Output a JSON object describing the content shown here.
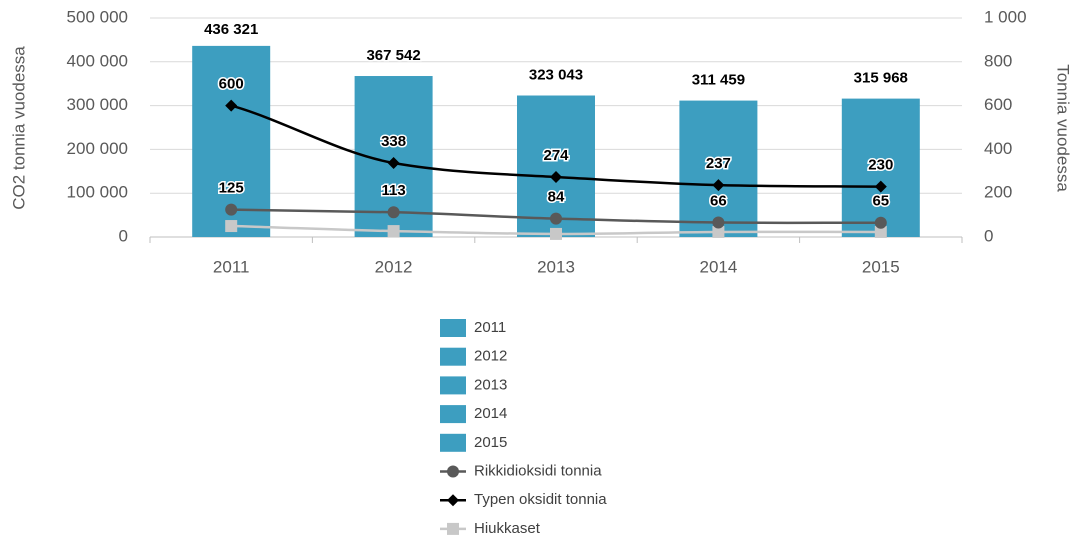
{
  "chart_data": {
    "type": "bar",
    "ylabel": "CO2 tonnia vuodessa",
    "y2label": "Tonnia vuodessa",
    "categories": [
      "2011",
      "2012",
      "2013",
      "2014",
      "2015"
    ],
    "values": [
      436321,
      367542,
      323043,
      311459,
      315968
    ],
    "value_labels": [
      "436 321",
      "367 542",
      "323 043",
      "311 459",
      "315 968"
    ],
    "color": "#3d9ec0",
    "ylim": [
      0,
      500000
    ],
    "yticks": [
      0,
      {
        "value": 100000,
        "label": "100 000"
      },
      {
        "value": 200000,
        "label": "200 000"
      },
      {
        "value": 300000,
        "label": "300 000"
      },
      {
        "value": 400000,
        "label": "400 000"
      },
      {
        "value": 500000,
        "label": "500 000"
      }
    ],
    "y2lim": [
      0,
      1000
    ],
    "y2ticks": [
      0,
      200,
      400,
      600,
      800,
      {
        "value": 1000,
        "label": "1 000"
      }
    ],
    "grid": true,
    "series": [
      {
        "name": "Rikkidioksidi tonnia",
        "color": "#595959",
        "marker": "circle",
        "axis": "y2",
        "values": [
          125,
          113,
          84,
          66,
          65
        ]
      },
      {
        "name": "Typen oksidit tonnia",
        "color": "#000000",
        "marker": "diamond",
        "axis": "y2",
        "values": [
          600,
          338,
          274,
          237,
          230
        ]
      },
      {
        "name": "Hiukkaset",
        "color": "#c8c8c8",
        "marker": "square",
        "axis": "y2",
        "values": [
          50,
          27,
          14,
          23,
          23
        ]
      }
    ]
  }
}
